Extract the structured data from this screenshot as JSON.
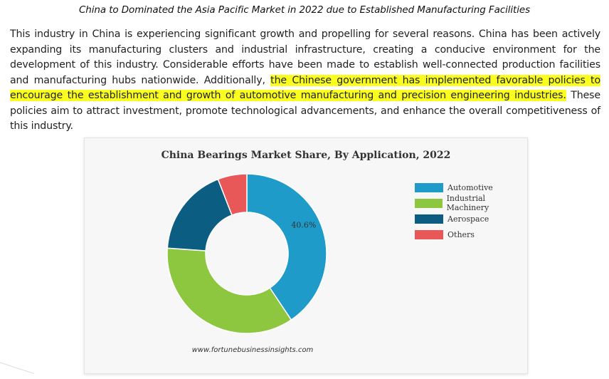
{
  "heading": "China to Dominated the Asia Pacific Market in 2022 due to Established Manufacturing Facilities",
  "paragraph": {
    "before": "This industry in China is experiencing significant growth and propelling for several reasons. China has been actively expanding its manufacturing clusters and industrial infrastructure, creating a conducive environment for the development of this industry. Considerable efforts have been made to establish well-connected production facilities and manufacturing hubs nationwide. Additionally, ",
    "highlight": "the Chinese government has implemented favorable policies to encourage the establishment and growth of automotive manufacturing and precision engineering industries.",
    "after": " These policies aim to attract investment, promote technological advancements, and enhance the overall competitiveness of this industry."
  },
  "colors": {
    "highlight": "#fbff1f",
    "automotive": "#1f9bc9",
    "industrial_machinery": "#8dc63f",
    "aerospace": "#0c5d82",
    "others": "#e85858"
  },
  "chart_data": {
    "type": "pie",
    "variant": "donut",
    "title": "China Bearings Market Share, By Application, 2022",
    "categories": [
      "Automotive",
      "Industrial Machinery",
      "Aerospace",
      "Others"
    ],
    "values": [
      40.6,
      35.5,
      18.0,
      5.9
    ],
    "data_labels": [
      "40.6%",
      null,
      null,
      null
    ],
    "legend_position": "right",
    "source": "www.fortunebusinessinsights.com"
  }
}
